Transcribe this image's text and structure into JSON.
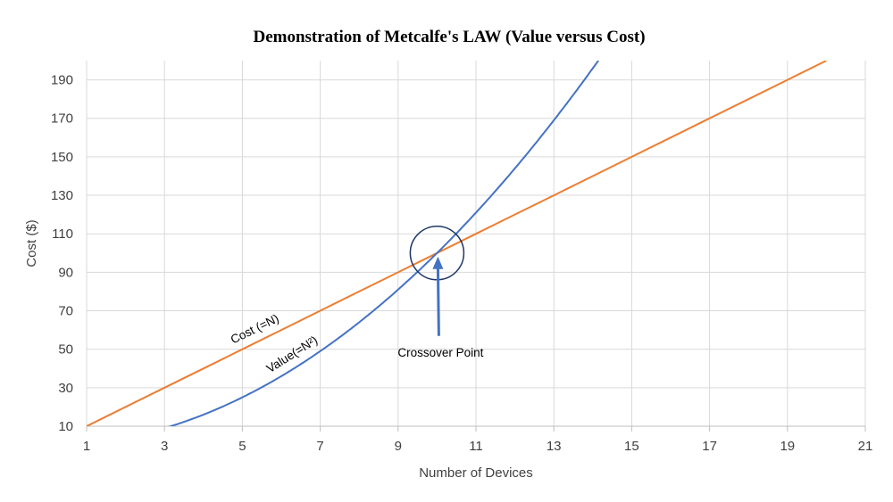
{
  "chart_data": {
    "type": "line",
    "title": "Demonstration of Metcalfe's LAW (Value versus Cost)",
    "xlabel": "Number of Devices",
    "ylabel": "Cost ($)",
    "xlim": [
      1,
      21
    ],
    "ylim": [
      10,
      200
    ],
    "x_ticks": [
      1,
      3,
      5,
      7,
      9,
      11,
      13,
      15,
      17,
      19,
      21
    ],
    "y_ticks": [
      10,
      30,
      50,
      70,
      90,
      110,
      130,
      150,
      170,
      190
    ],
    "grid": true,
    "series": [
      {
        "name": "Cost (=N)",
        "formula": "10N",
        "color": "#ED7D31",
        "x": [
          1,
          2,
          3,
          4,
          5,
          6,
          7,
          8,
          9,
          10,
          11,
          12,
          13,
          14,
          15,
          16,
          17,
          18,
          19,
          20
        ],
        "y": [
          10,
          20,
          30,
          40,
          50,
          60,
          70,
          80,
          90,
          100,
          110,
          120,
          130,
          140,
          150,
          160,
          170,
          180,
          190,
          200
        ]
      },
      {
        "name": "Value(=N²)",
        "formula": "N²",
        "color": "#4472C4",
        "x": [
          3,
          4,
          5,
          6,
          7,
          8,
          9,
          10,
          11,
          12,
          13,
          14,
          14.2
        ],
        "y": [
          9,
          16,
          25,
          36,
          49,
          64,
          81,
          100,
          121,
          144,
          169,
          196,
          201.6
        ]
      }
    ],
    "annotations": [
      {
        "text": "Crossover Point",
        "x": 10,
        "y": 100
      }
    ],
    "colors": {
      "cost": "#ED7D31",
      "value": "#4472C4",
      "marker": "#1F3864",
      "grid": "#D9D9D9",
      "axis": "#BFBFBF"
    }
  }
}
